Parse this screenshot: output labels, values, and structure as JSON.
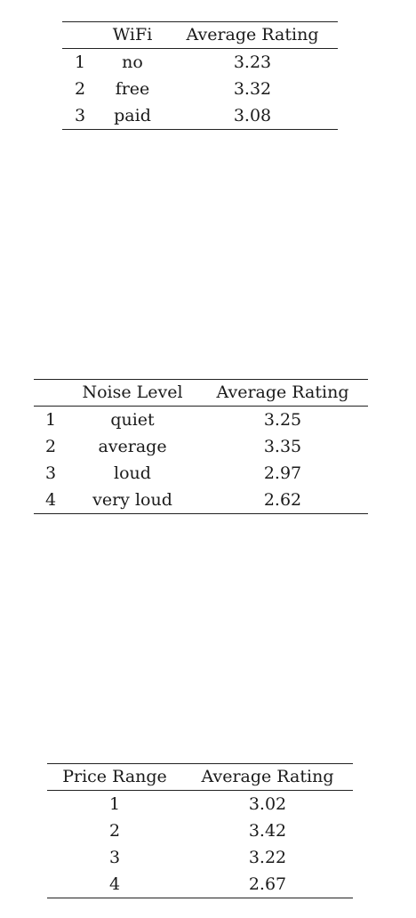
{
  "wifi_table": {
    "headers": [
      "",
      "WiFi",
      "Average Rating"
    ],
    "rows": [
      [
        "1",
        "no",
        "3.23"
      ],
      [
        "2",
        "free",
        "3.32"
      ],
      [
        "3",
        "paid",
        "3.08"
      ]
    ]
  },
  "noise_table": {
    "headers": [
      "",
      "Noise Level",
      "Average Rating"
    ],
    "rows": [
      [
        "1",
        "quiet",
        "3.25"
      ],
      [
        "2",
        "average",
        "3.35"
      ],
      [
        "3",
        "loud",
        "2.97"
      ],
      [
        "4",
        "very loud",
        "2.62"
      ]
    ]
  },
  "price_table": {
    "headers": [
      "Price Range",
      "Average Rating"
    ],
    "rows": [
      [
        "1",
        "3.02"
      ],
      [
        "2",
        "3.42"
      ],
      [
        "3",
        "3.22"
      ],
      [
        "4",
        "2.67"
      ]
    ]
  }
}
